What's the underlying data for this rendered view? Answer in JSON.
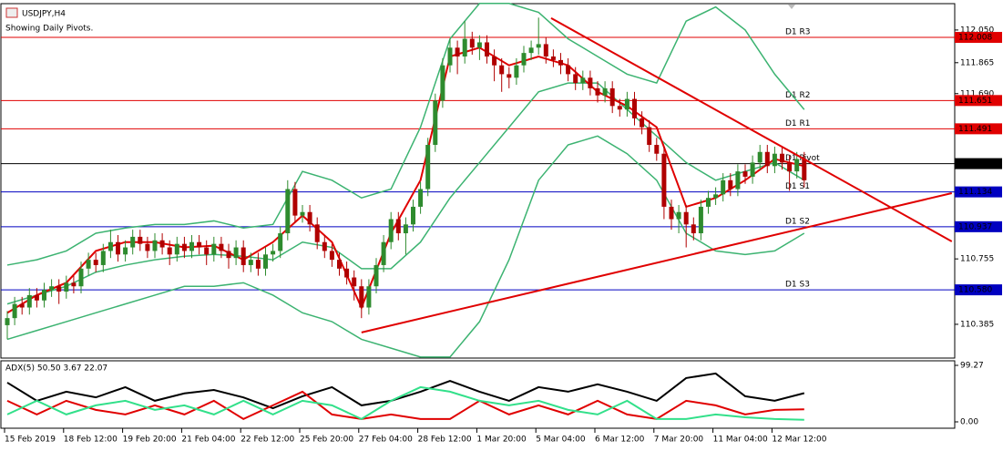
{
  "chart_data": [
    {
      "type": "candlestick",
      "title": "USDJPY,H4",
      "subtitle": "Showing Daily Pivots.",
      "categories": [
        "15 Feb 2019",
        null,
        null,
        null,
        null,
        null,
        null,
        null,
        "18 Feb 12:00",
        null,
        null,
        null,
        null,
        null,
        null,
        null,
        "19 Feb 20:00",
        null,
        null,
        null,
        null,
        null,
        null,
        null,
        "21 Feb 04:00",
        null,
        null,
        null,
        null,
        null,
        null,
        null,
        "22 Feb 12:00",
        null,
        null,
        null,
        null,
        null,
        null,
        null,
        "25 Feb 20:00",
        null,
        null,
        null,
        null,
        null,
        null,
        null,
        "27 Feb 04:00",
        null,
        null,
        null,
        null,
        null,
        null,
        null,
        "28 Feb 12:00",
        null,
        null,
        null,
        null,
        null,
        null,
        null,
        "1 Mar 20:00",
        null,
        null,
        null,
        null,
        null,
        null,
        null,
        "5 Mar 04:00",
        null,
        null,
        null,
        null,
        null,
        null,
        null,
        "6 Mar 12:00",
        null,
        null,
        null,
        null,
        null,
        null,
        null,
        "7 Mar 20:00",
        null,
        null,
        null,
        null,
        null,
        null,
        null,
        "11 Mar 04:00",
        null,
        null,
        null,
        null,
        null,
        null,
        null,
        "12 Mar 12:00",
        null,
        null,
        null,
        null
      ],
      "open": [
        110.38,
        110.42,
        110.5,
        110.48,
        110.55,
        110.52,
        110.58,
        110.6,
        110.57,
        110.62,
        110.6,
        110.7,
        110.75,
        110.72,
        110.8,
        110.85,
        110.78,
        110.82,
        110.88,
        110.84,
        110.8,
        110.86,
        110.82,
        110.78,
        110.84,
        110.8,
        110.85,
        110.82,
        110.78,
        110.84,
        110.8,
        110.76,
        110.82,
        110.72,
        110.75,
        110.7,
        110.78,
        110.8,
        110.9,
        111.15,
        111.0,
        111.02,
        110.95,
        110.85,
        110.8,
        110.75,
        110.7,
        110.65,
        110.6,
        110.48,
        110.6,
        110.72,
        110.85,
        110.98,
        110.9,
        110.95,
        111.05,
        111.15,
        111.4,
        111.65,
        111.85,
        111.95,
        111.9,
        112.0,
        111.95,
        111.98,
        111.9,
        111.85,
        111.8,
        111.78,
        111.85,
        111.92,
        111.95,
        111.97,
        111.9,
        111.88,
        111.85,
        111.8,
        111.75,
        111.78,
        111.72,
        111.68,
        111.72,
        111.62,
        111.6,
        111.66,
        111.55,
        111.5,
        111.4,
        111.35,
        111.05,
        110.98,
        111.02,
        110.95,
        110.9,
        111.05,
        111.1,
        111.12,
        111.2,
        111.15,
        111.25,
        111.22,
        111.3,
        111.36,
        111.28,
        111.35,
        111.3,
        111.25,
        111.32
      ],
      "high": [
        110.46,
        110.54,
        110.54,
        110.59,
        110.59,
        110.62,
        110.64,
        110.64,
        110.66,
        110.66,
        110.74,
        110.79,
        110.79,
        110.84,
        110.92,
        110.89,
        110.86,
        110.92,
        110.92,
        110.88,
        110.9,
        110.9,
        110.86,
        110.88,
        110.88,
        110.89,
        110.89,
        110.86,
        110.88,
        110.88,
        110.84,
        110.86,
        110.86,
        110.79,
        110.79,
        110.82,
        110.84,
        110.94,
        111.2,
        111.19,
        111.06,
        111.06,
        110.99,
        110.89,
        110.84,
        110.79,
        110.74,
        110.69,
        110.64,
        110.64,
        110.76,
        110.89,
        111.02,
        111.02,
        110.99,
        111.09,
        111.19,
        111.44,
        111.69,
        111.89,
        112.0,
        111.99,
        112.1,
        112.04,
        112.02,
        112.02,
        111.94,
        111.89,
        111.84,
        111.89,
        111.96,
        111.99,
        112.12,
        112.01,
        111.94,
        111.92,
        111.89,
        111.84,
        111.82,
        111.82,
        111.76,
        111.76,
        111.76,
        111.66,
        111.7,
        111.7,
        111.59,
        111.54,
        111.44,
        111.39,
        111.09,
        111.06,
        111.06,
        110.99,
        111.09,
        111.14,
        111.16,
        111.24,
        111.24,
        111.29,
        111.29,
        111.34,
        111.4,
        111.4,
        111.39,
        111.39,
        111.34,
        111.36,
        111.36
      ],
      "low": [
        110.3,
        110.38,
        110.44,
        110.44,
        110.48,
        110.48,
        110.54,
        110.5,
        110.53,
        110.56,
        110.56,
        110.66,
        110.68,
        110.68,
        110.76,
        110.74,
        110.74,
        110.78,
        110.8,
        110.76,
        110.76,
        110.78,
        110.72,
        110.74,
        110.76,
        110.76,
        110.78,
        110.72,
        110.74,
        110.76,
        110.7,
        110.72,
        110.68,
        110.68,
        110.66,
        110.66,
        110.74,
        110.76,
        110.86,
        110.96,
        110.96,
        110.91,
        110.81,
        110.76,
        110.71,
        110.66,
        110.61,
        110.52,
        110.42,
        110.44,
        110.56,
        110.68,
        110.81,
        110.86,
        110.78,
        110.91,
        111.01,
        111.11,
        111.36,
        111.61,
        111.81,
        111.8,
        111.86,
        111.91,
        111.88,
        111.86,
        111.76,
        111.7,
        111.72,
        111.74,
        111.81,
        111.88,
        111.91,
        111.86,
        111.84,
        111.8,
        111.76,
        111.71,
        111.71,
        111.68,
        111.64,
        111.64,
        111.58,
        111.56,
        111.56,
        111.51,
        111.46,
        111.36,
        111.31,
        110.98,
        110.92,
        110.9,
        110.82,
        110.86,
        110.86,
        111.01,
        111.06,
        111.08,
        111.11,
        111.11,
        111.18,
        111.18,
        111.26,
        111.24,
        111.24,
        111.26,
        111.14,
        111.21,
        111.16
      ],
      "close": [
        110.42,
        110.5,
        110.48,
        110.55,
        110.52,
        110.58,
        110.6,
        110.57,
        110.62,
        110.6,
        110.7,
        110.75,
        110.72,
        110.8,
        110.85,
        110.78,
        110.82,
        110.88,
        110.84,
        110.8,
        110.86,
        110.82,
        110.78,
        110.84,
        110.8,
        110.85,
        110.82,
        110.78,
        110.84,
        110.8,
        110.76,
        110.82,
        110.72,
        110.75,
        110.7,
        110.78,
        110.8,
        110.9,
        111.15,
        111.0,
        111.02,
        110.95,
        110.85,
        110.8,
        110.75,
        110.7,
        110.65,
        110.6,
        110.48,
        110.6,
        110.72,
        110.85,
        110.98,
        110.9,
        110.95,
        111.05,
        111.15,
        111.4,
        111.65,
        111.85,
        111.95,
        111.9,
        112.0,
        111.95,
        111.98,
        111.9,
        111.85,
        111.8,
        111.78,
        111.85,
        111.92,
        111.95,
        111.97,
        111.9,
        111.88,
        111.85,
        111.8,
        111.75,
        111.78,
        111.72,
        111.68,
        111.72,
        111.62,
        111.6,
        111.66,
        111.55,
        111.5,
        111.4,
        111.35,
        111.05,
        110.98,
        111.02,
        110.95,
        110.9,
        111.05,
        111.1,
        111.12,
        111.2,
        111.15,
        111.25,
        111.22,
        111.3,
        111.36,
        111.28,
        111.35,
        111.3,
        111.25,
        111.32,
        111.2
      ],
      "up_color": "#2e8b2e",
      "down_color": "#b00000",
      "ylim": [
        110.194,
        112.199
      ],
      "yticks": [
        {
          "value": 112.05,
          "label": "112.050"
        },
        111.865,
        {
          "value": 111.69,
          "label": "111.690"
        },
        110.755,
        110.385
      ],
      "overlay_x": [
        0,
        4,
        8,
        12,
        16,
        20,
        24,
        28,
        32,
        36,
        40,
        44,
        48,
        52,
        56,
        60,
        64,
        68,
        72,
        76,
        80,
        84,
        88,
        92,
        96,
        100,
        104,
        108
      ],
      "overlays": [
        {
          "color": "#3cb371",
          "values": [
            110.72,
            110.75,
            110.8,
            110.9,
            110.93,
            110.95,
            110.95,
            110.97,
            110.93,
            110.95,
            111.25,
            111.2,
            111.1,
            111.15,
            111.5,
            112.0,
            112.2,
            112.2,
            112.15,
            112.0,
            111.9,
            111.8,
            111.75,
            112.1,
            112.18,
            112.05,
            111.8,
            111.6
          ]
        },
        {
          "color": "#3cb371",
          "values": [
            110.5,
            110.55,
            110.6,
            110.68,
            110.72,
            110.75,
            110.77,
            110.78,
            110.77,
            110.75,
            110.85,
            110.82,
            110.7,
            110.7,
            110.85,
            111.1,
            111.3,
            111.5,
            111.7,
            111.75,
            111.75,
            111.6,
            111.45,
            111.3,
            111.2,
            111.25,
            111.3,
            111.2
          ]
        },
        {
          "color": "#3cb371",
          "values": [
            110.3,
            110.35,
            110.4,
            110.45,
            110.5,
            110.55,
            110.6,
            110.6,
            110.62,
            110.55,
            110.45,
            110.4,
            110.3,
            110.25,
            110.2,
            110.2,
            110.4,
            110.75,
            111.2,
            111.4,
            111.45,
            111.35,
            111.2,
            110.9,
            110.8,
            110.78,
            110.8,
            110.9
          ]
        },
        {
          "color": "#e00000",
          "values": [
            110.45,
            110.55,
            110.62,
            110.8,
            110.85,
            110.85,
            110.82,
            110.83,
            110.75,
            110.85,
            111.0,
            110.85,
            110.48,
            110.9,
            111.2,
            111.9,
            111.95,
            111.85,
            111.9,
            111.85,
            111.7,
            111.62,
            111.5,
            111.05,
            111.1,
            111.2,
            111.32,
            111.28
          ]
        }
      ],
      "pivots": [
        {
          "label": "D1 R3",
          "value": 112.008,
          "color": "#e00000"
        },
        {
          "label": "D1 R2",
          "value": 111.651,
          "color": "#e00000"
        },
        {
          "label": "D1 R1",
          "value": 111.491,
          "color": "#e00000"
        },
        {
          "label": "D1 Pivot",
          "value": 111.294,
          "color": "#000000"
        },
        {
          "label": "D1 S1",
          "value": 111.134,
          "color": "#0000c0"
        },
        {
          "label": "D1 S2",
          "value": 110.937,
          "color": "#0000c0"
        },
        {
          "label": "D1 S3",
          "value": 110.58,
          "value_label": "110.580",
          "color": "#0000c0"
        }
      ],
      "trendlines": [
        {
          "x": [
            73.7,
            128
          ],
          "y": [
            112.117,
            110.854
          ],
          "color": "#e00000"
        },
        {
          "x": [
            48,
            128
          ],
          "y": [
            110.339,
            111.127
          ],
          "color": "#e00000"
        }
      ]
    },
    {
      "type": "line",
      "title": "ADX(5) 50.50 3.67 22.07",
      "x": [
        0,
        4,
        8,
        12,
        16,
        20,
        24,
        28,
        32,
        36,
        40,
        44,
        48,
        52,
        56,
        60,
        64,
        68,
        72,
        76,
        80,
        84,
        88,
        92,
        96,
        100,
        104,
        108
      ],
      "ylim": [
        -11.2,
        105.7
      ],
      "yticks": [
        99.27,
        {
          "value": 0,
          "label": "0.00"
        }
      ],
      "series": [
        {
          "color": "#000000",
          "values": [
            69,
            37,
            53,
            43,
            61,
            37,
            50,
            56,
            43,
            24,
            45,
            61,
            29,
            37,
            53,
            72,
            53,
            37,
            61,
            53,
            66,
            53,
            37,
            77,
            85,
            45,
            37,
            50.5
          ]
        },
        {
          "color": "#e00000",
          "values": [
            37,
            13,
            37,
            21,
            13,
            29,
            13,
            37,
            5,
            29,
            53,
            13,
            5,
            13,
            5,
            5,
            37,
            13,
            29,
            13,
            37,
            13,
            5,
            37,
            29,
            13,
            21,
            22.07
          ]
        },
        {
          "color": "#32e08a",
          "values": [
            13,
            37,
            13,
            29,
            37,
            21,
            29,
            13,
            37,
            13,
            37,
            29,
            5,
            37,
            61,
            53,
            37,
            29,
            37,
            21,
            13,
            37,
            5,
            5,
            13,
            8,
            5,
            3.67
          ]
        }
      ]
    }
  ]
}
